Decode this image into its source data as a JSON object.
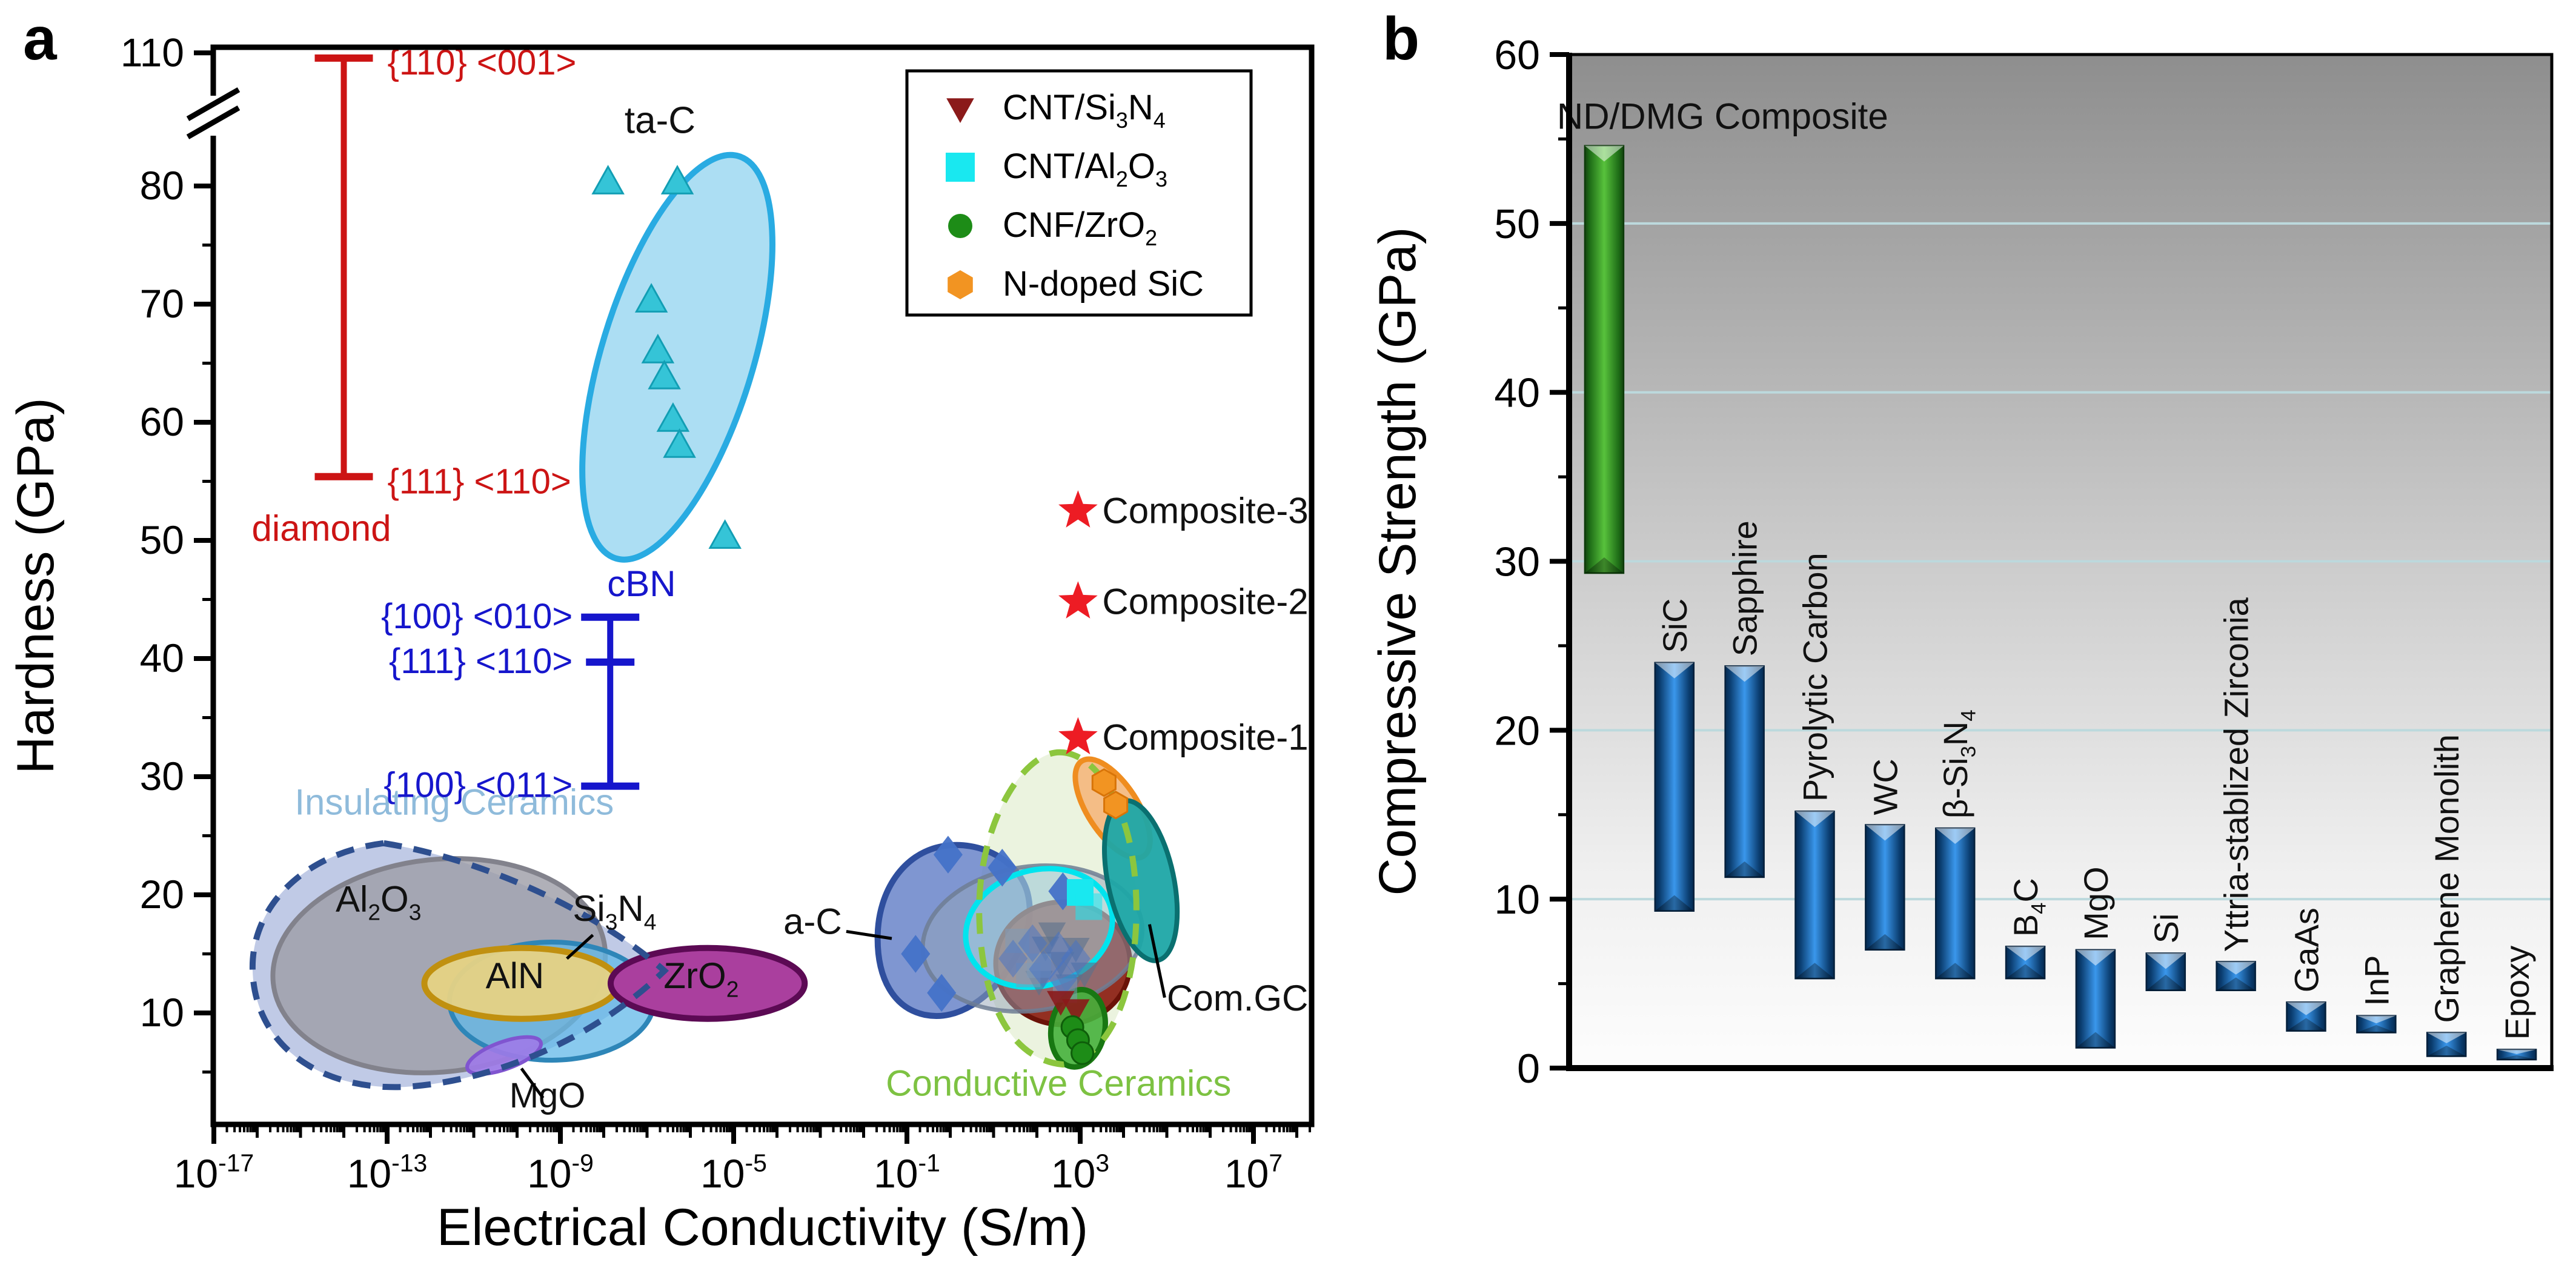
{
  "figure": {
    "panel_a_letter": "a",
    "panel_b_letter": "b"
  },
  "chart_data": [
    {
      "id": "panel_a",
      "type": "scatter",
      "xlabel": "Electrical Conductivity (S/m)",
      "ylabel": "Hardness (GPa)",
      "x_scale": "log10",
      "x_range_decades": [
        -17.05,
        8.35
      ],
      "x_major_ticks": [
        {
          "d": -17,
          "label": "10^{-17}"
        },
        {
          "d": -13,
          "label": "10^{-13}"
        },
        {
          "d": -9,
          "label": "10^{-9}"
        },
        {
          "d": -5,
          "label": "10^{-5}"
        },
        {
          "d": -1,
          "label": "10^{-1}"
        },
        {
          "d": 3,
          "label": "10^{3}"
        },
        {
          "d": 7,
          "label": "10^{7}"
        }
      ],
      "y_major_ticks": [
        110,
        80,
        70,
        60,
        50,
        40,
        30,
        20,
        10
      ],
      "y_minor_ticks": [
        85,
        75,
        65,
        55,
        45,
        35,
        25,
        15,
        5
      ],
      "y_axis_break_between": [
        86,
        110
      ],
      "error_bars": [
        {
          "name": "diamond-hardness-range",
          "color": "#cc1414",
          "x_d": -14.0,
          "top": 108,
          "bottom": 55.4,
          "mid_ticks": [],
          "side_labels": [
            {
              "text": "{110} <001>",
              "v": 106.3,
              "dx": 72,
              "anchor": "start"
            },
            {
              "text": "{111} <110>",
              "v": 55.0,
              "dx": 72,
              "anchor": "start"
            }
          ],
          "title": {
            "text": "diamond",
            "v": 51.0,
            "dx": -152,
            "anchor": "start"
          }
        },
        {
          "name": "cbn-hardness-range",
          "color": "#1616cc",
          "x_d": -7.85,
          "top": 43.5,
          "bottom": 29.2,
          "mid_ticks": [
            39.7
          ],
          "side_labels": [
            {
              "text": "{100} <010>",
              "v": 43.6,
              "dx": -62,
              "anchor": "end"
            },
            {
              "text": "{111} <110>",
              "v": 39.8,
              "dx": -62,
              "anchor": "end"
            },
            {
              "text": "{100} <011>",
              "v": 29.3,
              "dx": -62,
              "anchor": "end"
            }
          ],
          "title": {
            "text": "cBN",
            "v": 46.3,
            "dx": -5,
            "anchor": "start"
          }
        }
      ],
      "regions": [
        {
          "name": "ta-c-region",
          "shape": "ellipse",
          "cd": -6.3,
          "cv": 65.5,
          "rd": 1.75,
          "rv": 17.8,
          "rot": 17,
          "fill": "#a8dcf2",
          "fill_opacity": 0.95,
          "stroke": "#29abe2",
          "stroke_width": 10
        },
        {
          "name": "insulating-ceramics-fill",
          "shape": "teardrop",
          "d": [
            -16.3,
            -6.55
          ],
          "v": [
            3.2,
            24.8
          ],
          "fill": "#b7c3e2",
          "fill_opacity": 0.88,
          "draw": "fill"
        },
        {
          "name": "al2o3-region",
          "shape": "ellipse",
          "cd": -11.8,
          "cv": 14.0,
          "rd": 3.85,
          "rv": 9.0,
          "rot": -6,
          "fill": "#9c9ca6",
          "fill_opacity": 0.8,
          "stroke": "#82828c",
          "stroke_width": 8,
          "label": {
            "text": "Al_{2}O_{3}",
            "d": -13.2,
            "v": 18.6,
            "size": 60,
            "color": "#111111",
            "anchor": "middle"
          }
        },
        {
          "name": "si3n4-region",
          "shape": "ellipse",
          "cd": -9.2,
          "cv": 11.0,
          "rd": 2.36,
          "rv": 5.0,
          "rot": 0,
          "fill": "#62b8e8",
          "fill_opacity": 0.75,
          "stroke": "#2e86b8",
          "stroke_width": 8,
          "label": {
            "text": "Si_{3}N_{4}",
            "d": -7.75,
            "v": 17.8,
            "size": 60,
            "color": "#111111",
            "anchor": "middle"
          }
        },
        {
          "name": "aln-region",
          "shape": "ellipse",
          "cd": -9.9,
          "cv": 12.5,
          "rd": 2.24,
          "rv": 3.0,
          "rot": 0,
          "fill": "#e6d284",
          "fill_opacity": 0.95,
          "stroke": "#c09010",
          "stroke_width": 10,
          "label": {
            "text": "AlN",
            "d": -10.05,
            "v": 12.1,
            "size": 60,
            "color": "#111111",
            "anchor": "middle"
          }
        },
        {
          "name": "zro2-region",
          "shape": "ellipse",
          "cd": -5.6,
          "cv": 12.5,
          "rd": 2.24,
          "rv": 3.0,
          "rot": 0,
          "fill": "#aa3f9e",
          "fill_opacity": 1,
          "stroke": "#5c0a54",
          "stroke_width": 10,
          "label": {
            "text": "ZrO_{2}",
            "d": -5.75,
            "v": 12.1,
            "size": 60,
            "color": "#111111",
            "anchor": "middle"
          }
        },
        {
          "name": "mgo-region",
          "shape": "ellipse",
          "cd": -10.3,
          "cv": 6.4,
          "rd": 0.9,
          "rv": 1.15,
          "rot": -20,
          "fill": "#9f7ae8",
          "fill_opacity": 0.9,
          "stroke": "#8055d0",
          "stroke_width": 6,
          "label": {
            "text": "MgO",
            "d": -9.3,
            "v": 2.0,
            "size": 58,
            "color": "#111111",
            "anchor": "middle"
          }
        },
        {
          "name": "insulating-ceramics-border",
          "shape": "teardrop",
          "d": [
            -16.3,
            -6.55
          ],
          "v": [
            3.2,
            24.8
          ],
          "stroke": "#2e4f8f",
          "stroke_width": 10,
          "dash": "30 20",
          "draw": "stroke",
          "label": {
            "text": "Insulating Ceramics",
            "d": -11.45,
            "v": 26.8,
            "size": 60,
            "color": "#8fbbdb",
            "anchor": "middle"
          }
        },
        {
          "name": "conductive-ceramics-fill",
          "shape": "egg",
          "d": [
            0.55,
            4.5
          ],
          "v": [
            5.5,
            32.2
          ],
          "fill": "#e9f2db",
          "fill_opacity": 0.9,
          "draw": "fill"
        },
        {
          "name": "a-c-region",
          "shape": "pentablob",
          "d": [
            -1.75,
            1.95
          ],
          "v": [
            9.3,
            24.4
          ],
          "fill": "#5b79c4",
          "fill_opacity": 0.78,
          "stroke": "#2f4f9e",
          "stroke_width": 10,
          "label": {
            "text": "a-C",
            "d": -2.5,
            "v": 16.7,
            "size": 60,
            "color": "#111111",
            "anchor": "end"
          }
        },
        {
          "name": "cnt-si3n4-region",
          "shape": "ellipse",
          "cd": 2.6,
          "cv": 14.2,
          "rd": 1.55,
          "rv": 5.2,
          "rot": 0,
          "fill": "#8e2417",
          "fill_opacity": 0.95,
          "stroke": "#6b1208",
          "stroke_width": 8
        },
        {
          "name": "overlay-gray-region",
          "shape": "ellipse",
          "cd": 1.9,
          "cv": 16.3,
          "rd": 2.55,
          "rv": 6.1,
          "rot": -8,
          "fill": "#93a3b8",
          "fill_opacity": 0.5,
          "stroke": "#6e7e94",
          "stroke_width": 7,
          "stroke_opacity": 0.85
        },
        {
          "name": "cnt-al2o3-region",
          "shape": "ellipse",
          "cd": 2.05,
          "cv": 17.2,
          "rd": 1.72,
          "rv": 4.9,
          "rot": -16,
          "fill": "#baffff",
          "fill_opacity": 0.3,
          "stroke": "#00e4ee",
          "stroke_width": 9
        },
        {
          "name": "cnf-zro2-region",
          "shape": "ellipse",
          "cd": 2.95,
          "cv": 8.7,
          "rd": 0.62,
          "rv": 3.3,
          "rot": 10,
          "fill": "#46b13c",
          "fill_opacity": 0.9,
          "stroke": "#187712",
          "stroke_width": 9
        },
        {
          "name": "n-doped-sic-region",
          "shape": "ellipse",
          "cd": 3.75,
          "cv": 27.3,
          "rd": 0.58,
          "rv": 4.8,
          "rot": -33,
          "fill": "#f4b97e",
          "fill_opacity": 0.92,
          "stroke": "#ef8d20",
          "stroke_width": 9
        },
        {
          "name": "com-gc-region",
          "shape": "ellipse",
          "cd": 4.4,
          "cv": 21.2,
          "rd": 0.76,
          "rv": 6.9,
          "rot": -12,
          "fill": "#1ea7a7",
          "fill_opacity": 0.95,
          "stroke": "#0a7070",
          "stroke_width": 8,
          "label": {
            "text": "Com.GC",
            "d": 5.0,
            "v": 10.2,
            "size": 60,
            "color": "#111111",
            "anchor": "start"
          }
        },
        {
          "name": "conductive-ceramics-border",
          "shape": "egg",
          "d": [
            0.55,
            4.5
          ],
          "v": [
            5.5,
            32.2
          ],
          "stroke": "#8cc63e",
          "stroke_width": 10,
          "dash": "34 22",
          "draw": "stroke",
          "label": {
            "text": "Conductive Ceramics",
            "d": 2.5,
            "v": 3.0,
            "size": 60,
            "color": "#7dc242",
            "anchor": "middle"
          }
        }
      ],
      "series": [
        {
          "name": "ta-c-points",
          "marker": "triangle-up",
          "size": 26,
          "fill": "#35c4d7",
          "stroke": "#129eb4",
          "stroke_width": 3,
          "opacity": 1,
          "points": [
            [
              -7.9,
              80.3
            ],
            [
              -6.3,
              80.3
            ],
            [
              -6.9,
              70.3
            ],
            [
              -6.75,
              66.0
            ],
            [
              -6.6,
              63.8
            ],
            [
              -6.4,
              60.2
            ],
            [
              -6.25,
              58.0
            ],
            [
              -5.2,
              50.3
            ]
          ]
        },
        {
          "name": "overlay-gray-triangles",
          "marker": "triangle-down",
          "size": 24,
          "fill": "#5a708c",
          "opacity": 0.6,
          "points": [
            [
              2.2,
              15.6
            ],
            [
              2.55,
              14.3
            ],
            [
              2.9,
              15.5
            ],
            [
              2.05,
              12.7
            ],
            [
              2.75,
              12.4
            ],
            [
              3.1,
              13.4
            ],
            [
              2.35,
              16.8
            ]
          ]
        },
        {
          "name": "overlay-gray-squares",
          "marker": "square",
          "size": 20,
          "fill": "#7f9ab8",
          "opacity": 0.55,
          "points": [
            [
              1.55,
              16.1
            ],
            [
              2.05,
              14.0
            ],
            [
              2.65,
              11.9
            ],
            [
              1.8,
              13.2
            ]
          ]
        },
        {
          "name": "a-c-points",
          "marker": "diamond",
          "size": 24,
          "fill": "#4472c8",
          "opacity": 0.95,
          "points": [
            [
              -0.05,
              23.4
            ],
            [
              1.2,
              22.3
            ],
            [
              2.6,
              20.3
            ],
            [
              -0.8,
              15.0
            ],
            [
              -0.2,
              11.7
            ]
          ]
        },
        {
          "name": "a-c-points-faded",
          "marker": "diamond",
          "size": 24,
          "fill": "#4472c8",
          "opacity": 0.5,
          "points": [
            [
              1.9,
              15.9
            ],
            [
              2.5,
              15.3
            ],
            [
              2.9,
              14.6
            ],
            [
              2.6,
              12.9
            ],
            [
              2.15,
              13.7
            ],
            [
              1.45,
              14.6
            ]
          ]
        },
        {
          "name": "cnt-al2o3-points",
          "marker": "square",
          "size": 22,
          "fill": "#19e8f0",
          "opacity": 1,
          "points": [
            [
              3.0,
              20.2
            ]
          ]
        },
        {
          "name": "cnt-al2o3-points-faded",
          "marker": "square",
          "size": 22,
          "fill": "#19e8f0",
          "opacity": 0.55,
          "points": [
            [
              3.2,
              19.0
            ]
          ]
        },
        {
          "name": "cnt-si3n4-points",
          "marker": "triangle-down",
          "size": 24,
          "fill": "#8b1a1a",
          "opacity": 0.9,
          "points": [
            [
              2.55,
              11.0
            ],
            [
              2.9,
              10.3
            ]
          ]
        },
        {
          "name": "cnf-zro2-points",
          "marker": "circle",
          "size": 18,
          "fill": "#1d8c17",
          "stroke": "#0e5e0a",
          "stroke_width": 3,
          "opacity": 1,
          "points": [
            [
              2.82,
              8.8
            ],
            [
              2.95,
              7.7
            ],
            [
              3.05,
              6.6
            ]
          ]
        },
        {
          "name": "n-doped-sic-points",
          "marker": "hexagon",
          "size": 22,
          "fill": "#f29422",
          "stroke": "#d87408",
          "stroke_width": 3,
          "opacity": 1,
          "points": [
            [
              3.55,
              29.5
            ],
            [
              3.82,
              27.6
            ]
          ]
        }
      ],
      "stars": {
        "name": "composites",
        "marker": "star",
        "color": "#ed1c24",
        "size": 34,
        "label_dx": 40,
        "label_size": 60,
        "points": [
          {
            "d": 2.95,
            "v": 52.5,
            "label": "Composite-3"
          },
          {
            "d": 2.95,
            "v": 44.8,
            "label": "Composite-2"
          },
          {
            "d": 2.95,
            "v": 33.3,
            "label": "Composite-1"
          }
        ]
      },
      "annotations": [
        {
          "text": "ta-C",
          "d": -6.7,
          "v": 84.5,
          "size": 62,
          "color": "#111111",
          "anchor": "middle"
        }
      ],
      "pointer_lines": [
        {
          "name": "si3n4-pointer",
          "from": [
            -8.25,
            16.6
          ],
          "to": [
            -8.85,
            14.6
          ]
        },
        {
          "name": "mgo-pointer",
          "from": [
            -9.9,
            5.3
          ],
          "to": [
            -9.4,
            2.8
          ]
        },
        {
          "name": "a-c-pointer",
          "from": [
            -2.4,
            16.9
          ],
          "to": [
            -1.35,
            16.3
          ]
        },
        {
          "name": "com-gc-pointer",
          "from": [
            4.95,
            11.3
          ],
          "to": [
            4.6,
            17.5
          ]
        }
      ],
      "legend": {
        "items": [
          {
            "marker": "triangle-down",
            "color": "#8b1a1a",
            "label": "CNT/Si_{3}N_{4}"
          },
          {
            "marker": "square",
            "color": "#19e8f0",
            "label": "CNT/Al_{2}O_{3}"
          },
          {
            "marker": "circle",
            "color": "#1d8c17",
            "label": "CNF/ZrO_{2}"
          },
          {
            "marker": "hexagon",
            "color": "#f29422",
            "label": "N-doped SiC"
          }
        ]
      }
    },
    {
      "id": "panel_b",
      "type": "bar",
      "subtype": "floating-range-columns",
      "ylabel": "Compressive Strength (GPa)",
      "ylim": [
        0,
        60
      ],
      "y_major_ticks": [
        0,
        10,
        20,
        30,
        40,
        50,
        60
      ],
      "y_minor_ticks": [
        5,
        15,
        25,
        35,
        45,
        55
      ],
      "gridlines": [
        10,
        20,
        30,
        40,
        50
      ],
      "gridline_color": "#bcd9dd",
      "bg_gradient": [
        "#8e8e8e",
        "#c6c6c6",
        "#efefef",
        "#fdfdfd"
      ],
      "bars": [
        {
          "label": "ND/DMG Composite",
          "min": 29.3,
          "max": 54.6,
          "color": "green",
          "label_horizontal": true
        },
        {
          "label": "SiC",
          "min": 9.3,
          "max": 24.0,
          "color": "blue"
        },
        {
          "label": "Sapphire",
          "min": 11.3,
          "max": 23.8,
          "color": "blue"
        },
        {
          "label": "Pyrolytic Carbon",
          "min": 5.3,
          "max": 15.2,
          "color": "blue"
        },
        {
          "label": "WC",
          "min": 7.0,
          "max": 14.4,
          "color": "blue"
        },
        {
          "label": "β-Si_{3}N_{4}",
          "min": 5.3,
          "max": 14.2,
          "color": "blue"
        },
        {
          "label": "B_{4}C",
          "min": 5.3,
          "max": 7.2,
          "color": "blue"
        },
        {
          "label": "MgO",
          "min": 1.2,
          "max": 7.0,
          "color": "blue"
        },
        {
          "label": "Si",
          "min": 4.6,
          "max": 6.8,
          "color": "blue"
        },
        {
          "label": "Yttria-stablized Zirconia",
          "min": 4.6,
          "max": 6.3,
          "color": "blue"
        },
        {
          "label": "GaAs",
          "min": 2.2,
          "max": 3.9,
          "color": "blue"
        },
        {
          "label": "InP",
          "min": 2.1,
          "max": 3.1,
          "color": "blue"
        },
        {
          "label": "Graphene Monolith",
          "min": 0.7,
          "max": 2.1,
          "color": "blue"
        },
        {
          "label": "Epoxy",
          "min": 0.5,
          "max": 1.1,
          "color": "blue"
        }
      ]
    }
  ]
}
